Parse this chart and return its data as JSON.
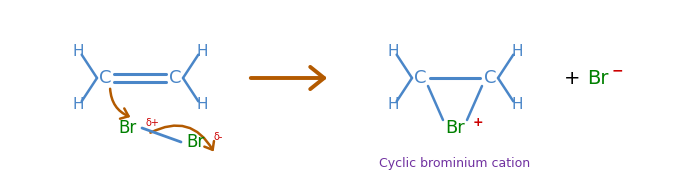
{
  "blue": "#4a86c8",
  "brown": "#b35a00",
  "green": "#008000",
  "red": "#cc0000",
  "purple": "#7030a0",
  "bg": "#ffffff",
  "figsize": [
    7.0,
    1.78
  ],
  "dpi": 100,
  "xlim": [
    0,
    700
  ],
  "ylim": [
    0,
    178
  ]
}
